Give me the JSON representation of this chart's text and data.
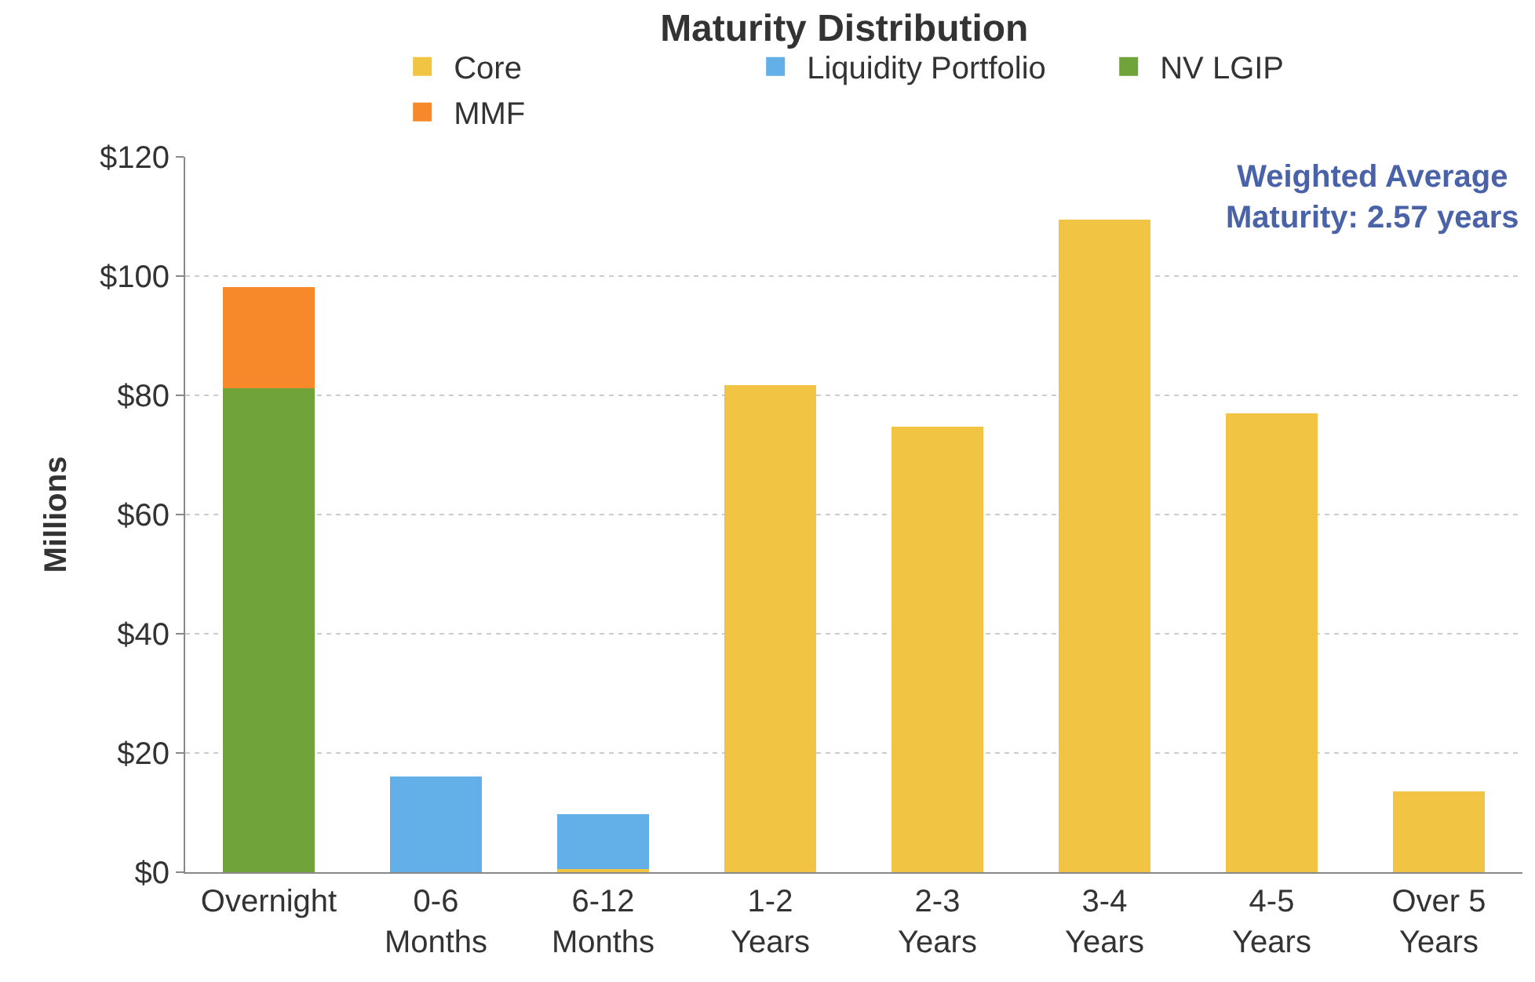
{
  "chart_data": {
    "type": "bar",
    "title": "Maturity Distribution",
    "ylabel": "Millions",
    "categories": [
      "Overnight",
      "0-6\nMonths",
      "6-12\nMonths",
      "1-2\nYears",
      "2-3\nYears",
      "3-4\nYears",
      "4-5\nYears",
      "Over 5\nYears"
    ],
    "stacked": true,
    "series": [
      {
        "name": "Core",
        "color": "#f2c443",
        "values": [
          null,
          null,
          0.5,
          81.7,
          74.7,
          109.5,
          77.0,
          13.6
        ]
      },
      {
        "name": "Liquidity Portfolio",
        "color": "#63b0e8",
        "values": [
          null,
          16.0,
          9.2,
          null,
          null,
          null,
          null,
          null
        ]
      },
      {
        "name": "NV LGIP",
        "color": "#70a33a",
        "values": [
          81.2,
          null,
          null,
          null,
          null,
          null,
          null,
          null
        ]
      },
      {
        "name": "MMF",
        "color": "#f7892a",
        "values": [
          17.0,
          null,
          null,
          null,
          null,
          null,
          null,
          null
        ]
      }
    ],
    "ylim": [
      0,
      120
    ],
    "yticks": [
      {
        "value": 0,
        "label": "$0"
      },
      {
        "value": 20,
        "label": "$20"
      },
      {
        "value": 40,
        "label": "$40"
      },
      {
        "value": 60,
        "label": "$60"
      },
      {
        "value": 80,
        "label": "$80"
      },
      {
        "value": 100,
        "label": "$100"
      },
      {
        "value": 120,
        "label": "$120"
      }
    ],
    "grid": "y",
    "legend": "top",
    "annotations": [
      "Weighted Average\nMaturity: 2.57 years"
    ]
  }
}
